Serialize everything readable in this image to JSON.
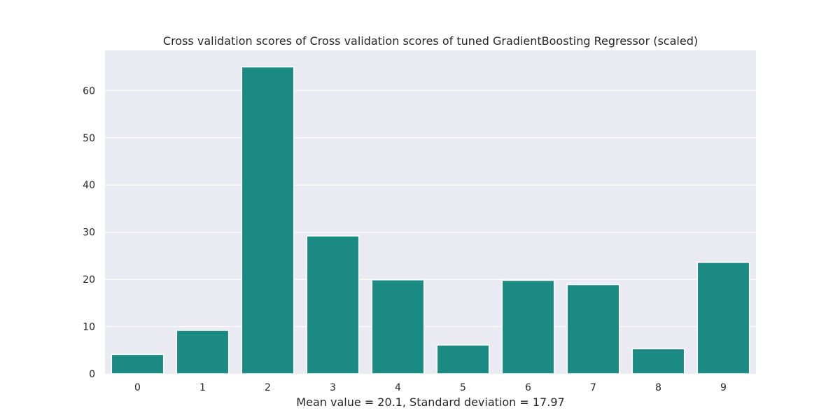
{
  "chart_data": {
    "type": "bar",
    "title": "Cross validation scores of Cross validation scores of tuned GradientBoosting Regressor (scaled)",
    "xlabel": "Mean value = 20.1, Standard deviation = 17.97",
    "ylabel": "",
    "categories": [
      "0",
      "1",
      "2",
      "3",
      "4",
      "5",
      "6",
      "7",
      "8",
      "9"
    ],
    "values": [
      4.1,
      9.2,
      65.0,
      29.2,
      19.9,
      6.1,
      19.8,
      18.9,
      5.3,
      23.6
    ],
    "ylim": [
      0,
      68.5
    ],
    "yticks": [
      0,
      10,
      20,
      30,
      40,
      50,
      60
    ],
    "bar_color": "#1a8a82",
    "background_color": "#eaeaf2",
    "grid": true
  }
}
